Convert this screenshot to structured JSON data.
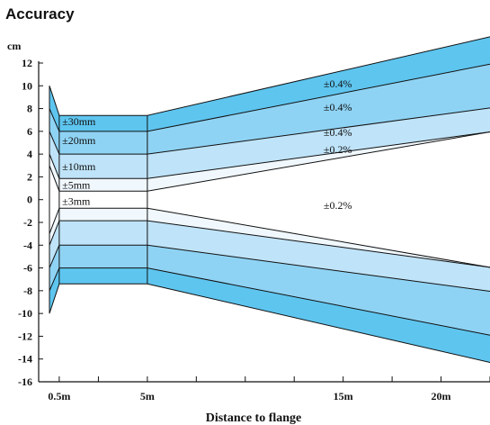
{
  "page": {
    "title": "Accuracy"
  },
  "chart_data": {
    "type": "area",
    "title": "Accuracy",
    "ylabel": "cm",
    "xlabel": "Distance to flange",
    "ylim": [
      -16,
      14
    ],
    "xlim": [
      0,
      22.5
    ],
    "grid": false,
    "yticks": [
      -16,
      -14,
      -12,
      -10,
      -8,
      -6,
      -4,
      -2,
      0,
      2,
      4,
      6,
      8,
      10,
      12
    ],
    "xticks": [
      {
        "x": 0.5,
        "label": "0.5m"
      },
      {
        "x": 5,
        "label": "5m"
      },
      {
        "x": 15,
        "label": "15m"
      },
      {
        "x": 20,
        "label": "20m"
      }
    ],
    "x_minor_ticks": [
      2.5,
      7.5,
      10,
      12.5,
      17.5,
      22.5
    ],
    "colors": [
      "#f0f8fe",
      "#bfe3f8",
      "#8fd3f4",
      "#5ec5ef"
    ],
    "series": [
      {
        "name": "±3mm / ±0.2%",
        "x": [
          0,
          0.5,
          5,
          22.5
        ],
        "y": [
          3,
          0.75,
          0.75,
          5.95
        ],
        "fill": "#ffffff"
      },
      {
        "name": "±5mm / ±0.2%",
        "x": [
          0,
          0.5,
          5,
          22.5
        ],
        "y": [
          4,
          1.85,
          1.85,
          5.95
        ],
        "fill": "#f0f8fe"
      },
      {
        "name": "±10mm / ±0.4%",
        "x": [
          0,
          0.5,
          5,
          22.5
        ],
        "y": [
          6,
          4,
          4,
          8.05
        ],
        "fill": "#bfe3f8"
      },
      {
        "name": "±20mm / ±0.4%",
        "x": [
          0,
          0.5,
          5,
          22.5
        ],
        "y": [
          8,
          6,
          6,
          11.9
        ],
        "fill": "#8fd3f4"
      },
      {
        "name": "±30mm / ±0.4%",
        "x": [
          0,
          0.5,
          5,
          22.5
        ],
        "y": [
          10,
          7.4,
          7.4,
          14.3
        ],
        "fill": "#5ec5ef"
      }
    ],
    "annotations": [
      {
        "text": "±30mm",
        "x": 0.65,
        "y": 6.55
      },
      {
        "text": "±20mm",
        "x": 0.65,
        "y": 4.9
      },
      {
        "text": "±10mm",
        "x": 0.65,
        "y": 2.6
      },
      {
        "text": "±5mm",
        "x": 0.65,
        "y": 0.95
      },
      {
        "text": "±3mm",
        "x": 0.65,
        "y": -0.45
      },
      {
        "text": "±0.4%",
        "x": 14.0,
        "y": 9.85
      },
      {
        "text": "±0.4%",
        "x": 14.0,
        "y": 7.8
      },
      {
        "text": "±0.4%",
        "x": 14.0,
        "y": 5.6
      },
      {
        "text": "±0.2%",
        "x": 14.0,
        "y": 4.1
      },
      {
        "text": "±0.2%",
        "x": 14.0,
        "y": -0.8
      }
    ]
  }
}
